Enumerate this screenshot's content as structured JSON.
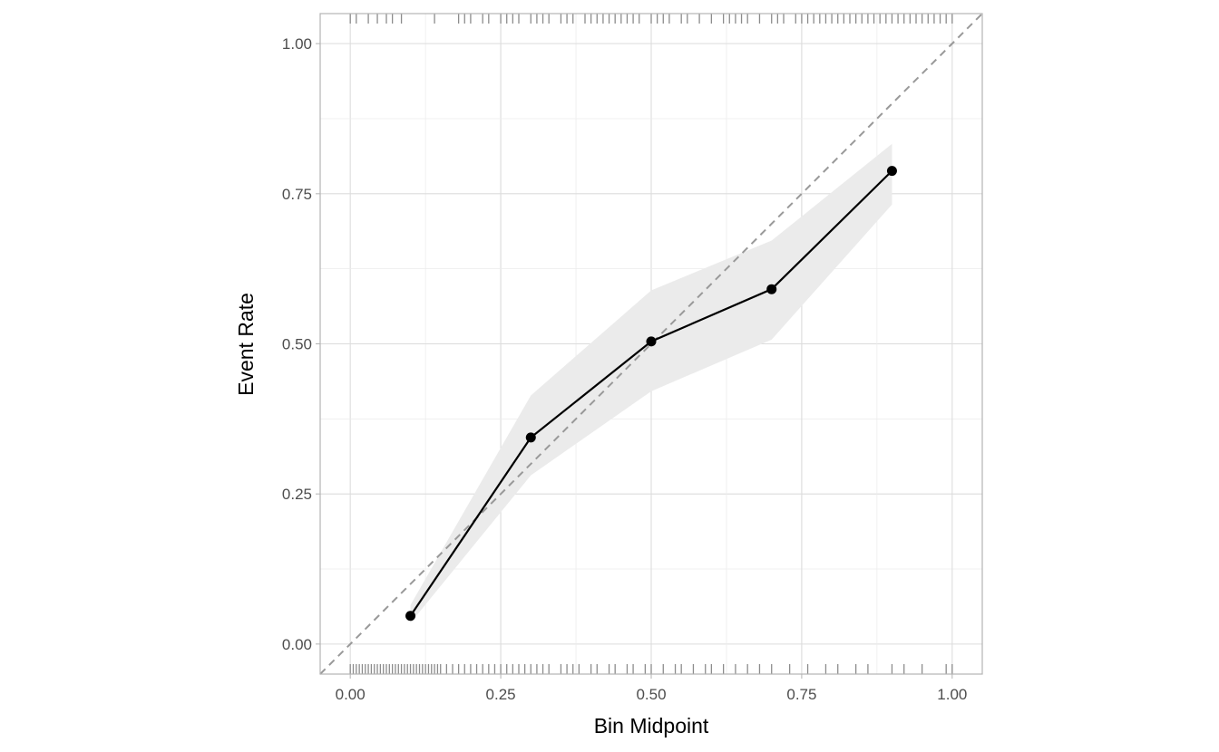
{
  "chart_data": {
    "type": "line",
    "xlabel": "Bin Midpoint",
    "ylabel": "Event Rate",
    "xlim": [
      -0.05,
      1.05
    ],
    "ylim": [
      -0.05,
      1.05
    ],
    "x_ticks": [
      "0.00",
      "0.25",
      "0.50",
      "0.75",
      "1.00"
    ],
    "y_ticks": [
      "0.00",
      "0.25",
      "0.50",
      "0.75",
      "1.00"
    ],
    "grid": true,
    "reference_line": {
      "style": "dashed",
      "slope": 1,
      "intercept": 0,
      "color": "#999999"
    },
    "series": [
      {
        "x": [
          0.1,
          0.3,
          0.5,
          0.7,
          0.9
        ],
        "y": [
          0.047,
          0.344,
          0.504,
          0.591,
          0.788
        ],
        "ci_lower": [
          0.035,
          0.281,
          0.421,
          0.507,
          0.732
        ],
        "ci_upper": [
          0.065,
          0.414,
          0.589,
          0.672,
          0.833
        ],
        "color": "#000000",
        "ribbon_color": "#ebebeb"
      }
    ],
    "rug_top": [
      0.0,
      0.01,
      0.03,
      0.045,
      0.06,
      0.07,
      0.085,
      0.14,
      0.18,
      0.19,
      0.2,
      0.22,
      0.23,
      0.25,
      0.26,
      0.27,
      0.28,
      0.3,
      0.31,
      0.32,
      0.33,
      0.35,
      0.36,
      0.37,
      0.39,
      0.4,
      0.41,
      0.42,
      0.43,
      0.44,
      0.45,
      0.46,
      0.47,
      0.48,
      0.5,
      0.51,
      0.52,
      0.53,
      0.55,
      0.56,
      0.58,
      0.6,
      0.62,
      0.63,
      0.64,
      0.65,
      0.66,
      0.68,
      0.7,
      0.71,
      0.72,
      0.74,
      0.75,
      0.76,
      0.77,
      0.78,
      0.79,
      0.8,
      0.81,
      0.82,
      0.83,
      0.84,
      0.85,
      0.86,
      0.87,
      0.88,
      0.89,
      0.9,
      0.91,
      0.92,
      0.93,
      0.94,
      0.95,
      0.96,
      0.97,
      0.98,
      0.99,
      1.0
    ],
    "rug_bottom": [
      0.0,
      0.005,
      0.01,
      0.015,
      0.02,
      0.025,
      0.03,
      0.035,
      0.04,
      0.045,
      0.05,
      0.055,
      0.06,
      0.065,
      0.07,
      0.075,
      0.08,
      0.085,
      0.09,
      0.095,
      0.1,
      0.105,
      0.11,
      0.115,
      0.12,
      0.125,
      0.13,
      0.135,
      0.14,
      0.145,
      0.15,
      0.16,
      0.17,
      0.18,
      0.19,
      0.2,
      0.21,
      0.22,
      0.23,
      0.24,
      0.25,
      0.26,
      0.27,
      0.28,
      0.29,
      0.3,
      0.31,
      0.32,
      0.33,
      0.35,
      0.36,
      0.37,
      0.38,
      0.4,
      0.41,
      0.43,
      0.44,
      0.46,
      0.47,
      0.49,
      0.5,
      0.52,
      0.54,
      0.55,
      0.57,
      0.59,
      0.6,
      0.62,
      0.64,
      0.66,
      0.68,
      0.7,
      0.73,
      0.76,
      0.79,
      0.81,
      0.84,
      0.86,
      0.9,
      0.92,
      0.95,
      0.99,
      1.0
    ],
    "rug_color": "#8c8c8c"
  }
}
